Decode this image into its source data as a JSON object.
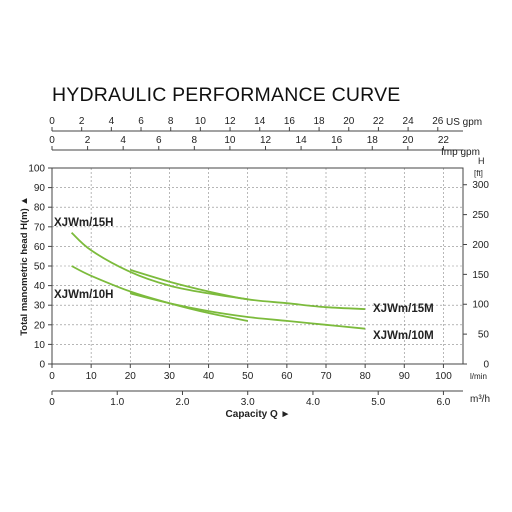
{
  "chart_data": {
    "type": "line",
    "title": "HYDRAULIC PERFORMANCE CURVE",
    "xlabel": "Capacity Q",
    "ylabel": "Total manometric head H(m)",
    "x_unit": "l/min",
    "xlim": [
      0,
      105
    ],
    "ylim": [
      0,
      100
    ],
    "x_ticks": [
      "0",
      "10",
      "20",
      "30",
      "40",
      "50",
      "60",
      "70",
      "80",
      "90",
      "100"
    ],
    "y_ticks": [
      "0",
      "10",
      "20",
      "30",
      "40",
      "50",
      "60",
      "70",
      "80",
      "90",
      "100"
    ],
    "secondary_axes": {
      "us_gpm": {
        "unit": "US gpm",
        "max": 27.7,
        "ticks": [
          "0",
          "2",
          "4",
          "6",
          "8",
          "10",
          "12",
          "14",
          "16",
          "18",
          "20",
          "22",
          "24",
          "26"
        ]
      },
      "imp_gpm": {
        "unit": "Imp gpm",
        "max": 23.1,
        "ticks": [
          "0",
          "2",
          "4",
          "6",
          "8",
          "10",
          "12",
          "14",
          "16",
          "18",
          "20",
          "22"
        ]
      },
      "m3h": {
        "unit": "m³/h",
        "max": 6.3,
        "ticks": [
          "0",
          "1.0",
          "2.0",
          "3.0",
          "4.0",
          "5.0",
          "6.0"
        ]
      },
      "head_ft": {
        "unit": "[ft]",
        "header": "H",
        "max": 328,
        "ticks": [
          "0",
          "50",
          "100",
          "150",
          "200",
          "250",
          "300"
        ]
      }
    },
    "grid": true,
    "line_color": "#7cbb3c",
    "series": [
      {
        "name": "XJWm/15H",
        "x": [
          5,
          10,
          20,
          30,
          40,
          50
        ],
        "y": [
          67,
          58,
          47,
          40,
          36,
          33
        ]
      },
      {
        "name": "XJWm/15M",
        "x": [
          20,
          30,
          40,
          50,
          60,
          70,
          80
        ],
        "y": [
          48,
          42,
          37,
          33,
          31,
          29,
          28
        ]
      },
      {
        "name": "XJWm/10H",
        "x": [
          5,
          10,
          20,
          30,
          40,
          50
        ],
        "y": [
          50,
          45,
          37,
          31,
          26,
          22
        ]
      },
      {
        "name": "XJWm/10M",
        "x": [
          20,
          30,
          40,
          50,
          60,
          70,
          80
        ],
        "y": [
          36,
          31,
          27,
          24,
          22,
          20,
          18
        ]
      }
    ]
  }
}
